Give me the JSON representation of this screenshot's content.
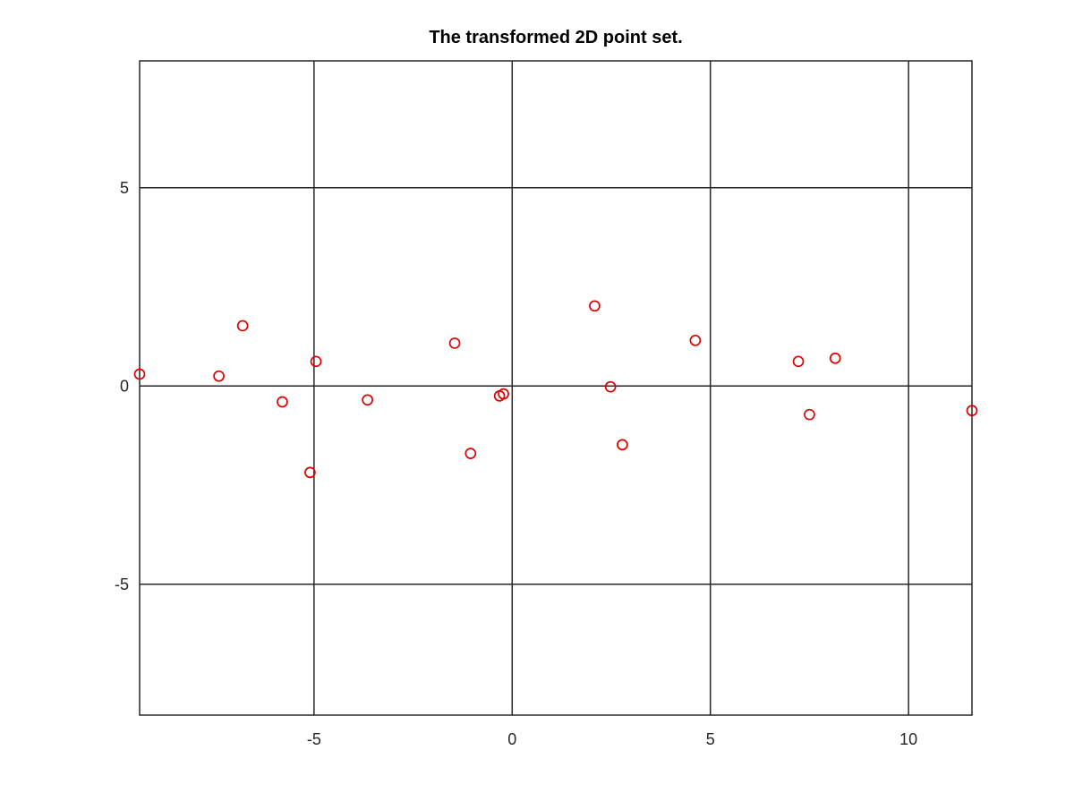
{
  "chart_data": {
    "type": "scatter",
    "title": "The transformed 2D point set.",
    "xlabel": "",
    "ylabel": "",
    "xlim": [
      -9.4,
      11.6
    ],
    "ylim": [
      -8.3,
      8.2
    ],
    "xticks": [
      -5,
      0,
      5,
      10
    ],
    "yticks": [
      -5,
      0,
      5
    ],
    "xtick_labels": [
      "-5",
      "0",
      "5",
      "10"
    ],
    "ytick_labels": [
      "-5",
      "0",
      "5"
    ],
    "grid": true,
    "marker": "circle-open",
    "marker_color": "#e00000",
    "series": [
      {
        "points": [
          {
            "x": -9.4,
            "y": 0.3
          },
          {
            "x": -7.4,
            "y": 0.25
          },
          {
            "x": -6.8,
            "y": 1.52
          },
          {
            "x": -5.8,
            "y": -0.4
          },
          {
            "x": -5.1,
            "y": -2.18
          },
          {
            "x": -4.95,
            "y": 0.62
          },
          {
            "x": -3.65,
            "y": -0.35
          },
          {
            "x": -1.45,
            "y": 1.08
          },
          {
            "x": -1.05,
            "y": -1.7
          },
          {
            "x": -0.32,
            "y": -0.25
          },
          {
            "x": -0.22,
            "y": -0.2
          },
          {
            "x": 2.08,
            "y": 2.02
          },
          {
            "x": 2.48,
            "y": -0.02
          },
          {
            "x": 2.78,
            "y": -1.48
          },
          {
            "x": 4.62,
            "y": 1.15
          },
          {
            "x": 7.22,
            "y": 0.62
          },
          {
            "x": 7.5,
            "y": -0.72
          },
          {
            "x": 8.15,
            "y": 0.7
          },
          {
            "x": 11.6,
            "y": -0.62
          }
        ]
      }
    ]
  }
}
